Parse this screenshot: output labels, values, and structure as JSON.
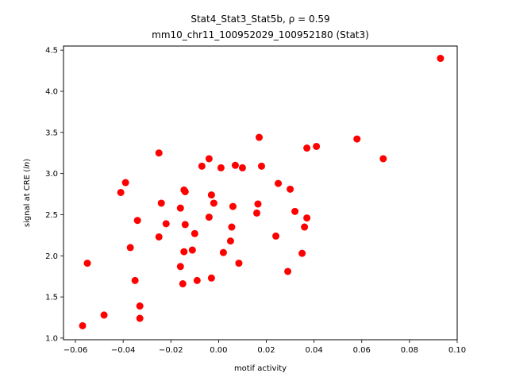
{
  "chart_data": {
    "type": "scatter",
    "title_line1": "Stat4_Stat3_Stat5b, ρ = 0.59",
    "title_line2": "mm10_chr11_100952029_100952180 (Stat3)",
    "xlabel": "motif activity",
    "ylabel": "signal at CRE (ln)",
    "xlim": [
      -0.065,
      0.1
    ],
    "ylim": [
      0.98,
      4.55
    ],
    "xticks": [
      -0.06,
      -0.04,
      -0.02,
      0.0,
      0.02,
      0.04,
      0.06,
      0.08,
      0.1
    ],
    "xtick_labels": [
      "−0.06",
      "−0.04",
      "−0.02",
      "0.00",
      "0.02",
      "0.04",
      "0.06",
      "0.08",
      "0.10"
    ],
    "yticks": [
      1.0,
      1.5,
      2.0,
      2.5,
      3.0,
      3.5,
      4.0,
      4.5
    ],
    "ytick_labels": [
      "1.0",
      "1.5",
      "2.0",
      "2.5",
      "3.0",
      "3.5",
      "4.0",
      "4.5"
    ],
    "marker_color": "#ff0000",
    "grid": false,
    "points": [
      [
        -0.057,
        1.15
      ],
      [
        -0.055,
        1.91
      ],
      [
        -0.048,
        1.28
      ],
      [
        -0.041,
        2.77
      ],
      [
        -0.039,
        2.89
      ],
      [
        -0.037,
        2.1
      ],
      [
        -0.035,
        1.7
      ],
      [
        -0.034,
        2.43
      ],
      [
        -0.033,
        1.39
      ],
      [
        -0.033,
        1.24
      ],
      [
        -0.025,
        3.25
      ],
      [
        -0.025,
        2.23
      ],
      [
        -0.024,
        2.64
      ],
      [
        -0.022,
        2.39
      ],
      [
        -0.016,
        2.58
      ],
      [
        -0.016,
        1.87
      ],
      [
        -0.015,
        1.66
      ],
      [
        -0.0145,
        2.05
      ],
      [
        -0.0145,
        2.8
      ],
      [
        -0.014,
        2.78
      ],
      [
        -0.014,
        2.38
      ],
      [
        -0.011,
        2.07
      ],
      [
        -0.01,
        2.27
      ],
      [
        -0.009,
        1.7
      ],
      [
        -0.007,
        3.09
      ],
      [
        -0.004,
        3.18
      ],
      [
        -0.004,
        2.47
      ],
      [
        -0.003,
        1.73
      ],
      [
        -0.003,
        2.74
      ],
      [
        -0.002,
        2.64
      ],
      [
        0.001,
        3.07
      ],
      [
        0.002,
        2.04
      ],
      [
        0.005,
        2.18
      ],
      [
        0.0055,
        2.35
      ],
      [
        0.006,
        2.6
      ],
      [
        0.007,
        3.1
      ],
      [
        0.0085,
        1.91
      ],
      [
        0.01,
        3.07
      ],
      [
        0.016,
        2.52
      ],
      [
        0.0165,
        2.63
      ],
      [
        0.017,
        3.44
      ],
      [
        0.018,
        3.09
      ],
      [
        0.024,
        2.24
      ],
      [
        0.025,
        2.88
      ],
      [
        0.029,
        1.81
      ],
      [
        0.03,
        2.81
      ],
      [
        0.032,
        2.54
      ],
      [
        0.035,
        2.03
      ],
      [
        0.036,
        2.35
      ],
      [
        0.037,
        2.46
      ],
      [
        0.037,
        3.31
      ],
      [
        0.041,
        3.33
      ],
      [
        0.058,
        3.42
      ],
      [
        0.069,
        3.18
      ],
      [
        0.093,
        4.4
      ]
    ]
  }
}
